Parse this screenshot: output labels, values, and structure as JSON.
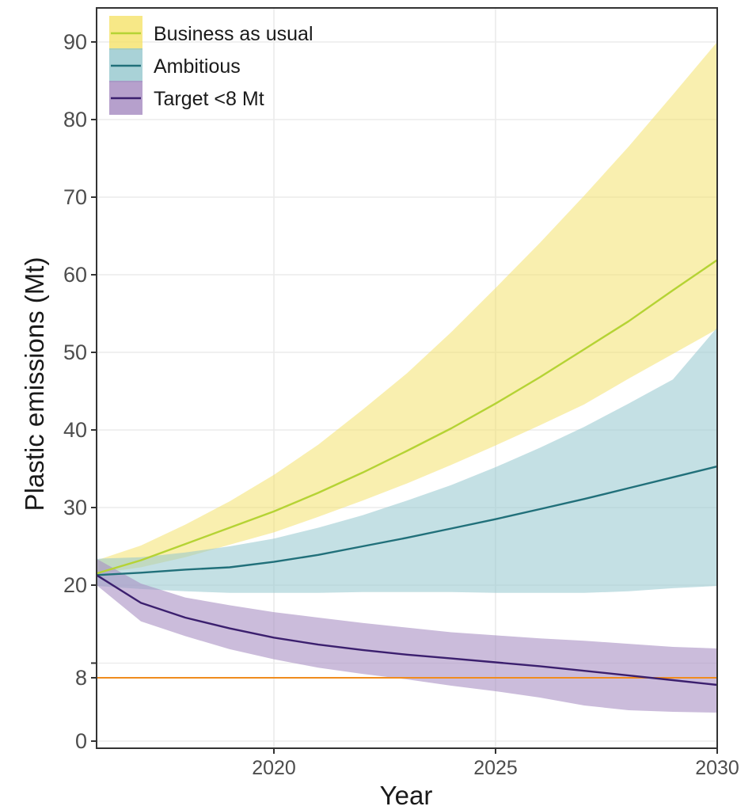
{
  "chart_data": {
    "type": "line",
    "title": "",
    "xlabel": "Year",
    "ylabel": "Plastic emissions (Mt)",
    "xlim": [
      2016,
      2030
    ],
    "ylim": [
      0,
      92
    ],
    "x_ticks": [
      2020,
      2025,
      2030
    ],
    "x_tick_labels": [
      "2020",
      "2025",
      "2030"
    ],
    "y_ticks": [
      0,
      8,
      20,
      30,
      40,
      50,
      60,
      70,
      80,
      90
    ],
    "y_tick_labels": [
      "0",
      "8",
      "20",
      "30",
      "40",
      "50",
      "60",
      "70",
      "80",
      "90"
    ],
    "grid": true,
    "legend_position": "top-left",
    "x": [
      2016,
      2017,
      2018,
      2019,
      2020,
      2021,
      2022,
      2023,
      2024,
      2025,
      2026,
      2027,
      2028,
      2029,
      2030
    ],
    "series": [
      {
        "name": "Business as usual",
        "line_color": "#b5d334",
        "band_color": "#f4e05f",
        "band_opacity": 0.5,
        "values": [
          21.5,
          23.2,
          25.3,
          27.4,
          29.5,
          31.9,
          34.5,
          37.3,
          40.2,
          43.4,
          46.8,
          50.4,
          54.0,
          58.0,
          61.9
        ],
        "lower": [
          21.5,
          22.3,
          23.6,
          25.2,
          26.8,
          28.8,
          30.9,
          33.1,
          35.5,
          38.0,
          40.6,
          43.3,
          46.6,
          49.8,
          53.0
        ],
        "upper": [
          23.2,
          25.1,
          27.8,
          30.8,
          34.2,
          38.1,
          42.6,
          47.3,
          52.6,
          58.3,
          64.1,
          70.2,
          76.5,
          83.2,
          90.0
        ]
      },
      {
        "name": "Ambitious",
        "line_color": "#21707a",
        "band_color": "#93c7cd",
        "band_opacity": 0.55,
        "values": [
          21.3,
          21.6,
          22.0,
          22.3,
          23.0,
          23.9,
          25.0,
          26.1,
          27.3,
          28.5,
          29.8,
          31.1,
          32.5,
          33.9,
          35.3
        ],
        "lower": [
          19.9,
          19.5,
          19.2,
          19.0,
          19.0,
          19.0,
          19.1,
          19.1,
          19.1,
          19.0,
          19.0,
          19.0,
          19.2,
          19.6,
          19.9
        ],
        "upper": [
          23.4,
          23.6,
          24.2,
          25.0,
          26.0,
          27.4,
          29.0,
          30.9,
          32.9,
          35.2,
          37.7,
          40.4,
          43.4,
          46.5,
          53.2
        ]
      },
      {
        "name": "Target <8 Mt",
        "line_color": "#3b1f6e",
        "band_color": "#a98fc3",
        "band_opacity": 0.6,
        "values": [
          21.3,
          17.7,
          15.8,
          14.4,
          13.2,
          12.3,
          11.6,
          11.0,
          10.5,
          10.0,
          9.5,
          8.9,
          8.3,
          7.7,
          7.1
        ],
        "lower": [
          20.0,
          15.3,
          13.4,
          11.7,
          10.4,
          9.3,
          8.5,
          7.8,
          7.0,
          6.3,
          5.5,
          4.5,
          3.9,
          3.7,
          3.6
        ],
        "upper": [
          23.4,
          20.2,
          18.4,
          17.4,
          16.5,
          15.8,
          15.1,
          14.5,
          13.9,
          13.5,
          13.1,
          12.8,
          12.4,
          12.0,
          11.8
        ]
      }
    ],
    "reference_line": {
      "y": 8,
      "color": "#f08c1e"
    }
  },
  "colors": {
    "grid": "#ebebeb",
    "axis": "#333333",
    "panel_border": "#333333"
  }
}
